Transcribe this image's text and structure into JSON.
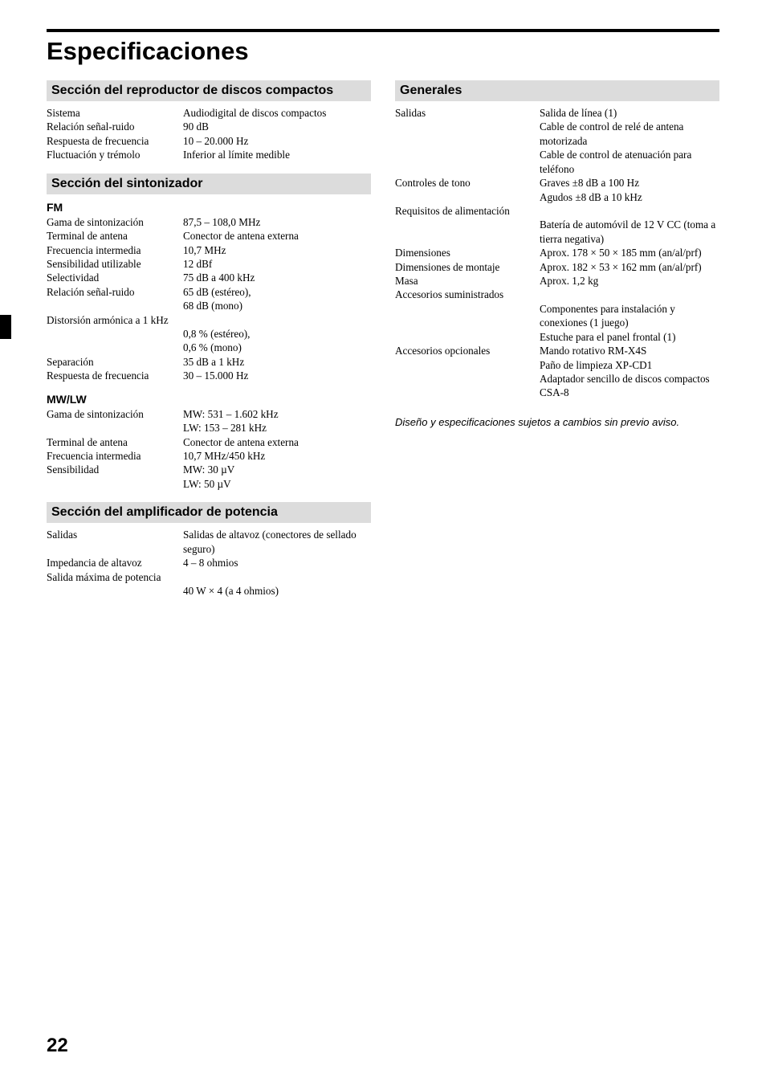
{
  "page": {
    "title": "Especificaciones",
    "number": "22",
    "footnote": "Diseño y especificaciones sujetos a cambios sin previo aviso."
  },
  "left": {
    "cd": {
      "header": "Sección del reproductor de discos compactos",
      "rows": [
        {
          "label": "Sistema",
          "value": "Audiodigital de discos compactos"
        },
        {
          "label": "Relación señal-ruido",
          "value": "90 dB"
        },
        {
          "label": "Respuesta de frecuencia",
          "value": "10 – 20.000 Hz"
        },
        {
          "label": "Fluctuación y trémolo",
          "value": "Inferior al límite medible"
        }
      ]
    },
    "tuner": {
      "header": "Sección del sintonizador",
      "fm": {
        "subhead": "FM",
        "rows1": [
          {
            "label": "Gama de sintonización",
            "value": "87,5 – 108,0 MHz"
          },
          {
            "label": "Terminal de antena",
            "value": "Conector de antena externa"
          },
          {
            "label": "Frecuencia intermedia",
            "value": "10,7 MHz"
          },
          {
            "label": "Sensibilidad utilizable",
            "value": "12 dBf"
          },
          {
            "label": "Selectividad",
            "value": "75 dB a 400 kHz"
          },
          {
            "label": "Relación señal-ruido",
            "value": "65 dB (estéreo),"
          },
          {
            "label": "",
            "value": "68 dB (mono)"
          }
        ],
        "full": "Distorsión armónica a 1 kHz",
        "rows2": [
          {
            "label": "",
            "value": "0,8 % (estéreo),"
          },
          {
            "label": "",
            "value": "0,6 % (mono)"
          },
          {
            "label": "Separación",
            "value": "35 dB a 1 kHz"
          },
          {
            "label": "Respuesta de frecuencia",
            "value": "30 – 15.000 Hz"
          }
        ]
      },
      "mwlw": {
        "subhead": "MW/LW",
        "rows": [
          {
            "label": "Gama de sintonización",
            "value": "MW: 531 – 1.602 kHz"
          },
          {
            "label": "",
            "value": "LW: 153 – 281 kHz"
          },
          {
            "label": "Terminal de antena",
            "value": "Conector de antena externa"
          },
          {
            "label": "Frecuencia intermedia",
            "value": "10,7 MHz/450 kHz"
          },
          {
            "label": "Sensibilidad",
            "value": "MW: 30 µV"
          },
          {
            "label": "",
            "value": "LW: 50 µV"
          }
        ]
      }
    },
    "amp": {
      "header": "Sección del amplificador de potencia",
      "rows1": [
        {
          "label": "Salidas",
          "value": "Salidas de altavoz (conectores de sellado seguro)"
        },
        {
          "label": "Impedancia de altavoz",
          "value": "4 – 8 ohmios"
        }
      ],
      "full": "Salida máxima de potencia",
      "rows2": [
        {
          "label": "",
          "value": "40 W × 4 (a 4 ohmios)"
        }
      ]
    }
  },
  "right": {
    "general": {
      "header": "Generales",
      "rows1": [
        {
          "label": "Salidas",
          "value": "Salida de línea (1)"
        },
        {
          "label": "",
          "value": "Cable de control de relé de antena motorizada"
        },
        {
          "label": "",
          "value": "Cable de control de atenuación para teléfono"
        },
        {
          "label": "Controles de tono",
          "value": "Graves ±8 dB a 100 Hz"
        },
        {
          "label": "",
          "value": "Agudos ±8 dB a 10 kHz"
        }
      ],
      "full": "Requisitos de alimentación",
      "rows2": [
        {
          "label": "",
          "value": "Batería de automóvil de 12 V CC (toma a tierra negativa)"
        },
        {
          "label": "Dimensiones",
          "value": "Aprox. 178 × 50 × 185 mm (an/al/prf)"
        },
        {
          "label": "Dimensiones de montaje",
          "value": "Aprox. 182 × 53 × 162 mm (an/al/prf)"
        },
        {
          "label": "Masa",
          "value": "Aprox. 1,2 kg"
        },
        {
          "label": "Accesorios suministrados",
          "value": ""
        },
        {
          "label": "",
          "value": "Componentes para instalación y conexiones (1 juego)"
        },
        {
          "label": "",
          "value": "Estuche para el panel frontal (1)"
        },
        {
          "label": "Accesorios opcionales",
          "value": "Mando rotativo RM-X4S"
        },
        {
          "label": "",
          "value": "Paño de limpieza XP-CD1"
        },
        {
          "label": "",
          "value": "Adaptador sencillo de discos compactos CSA-8"
        }
      ]
    }
  }
}
